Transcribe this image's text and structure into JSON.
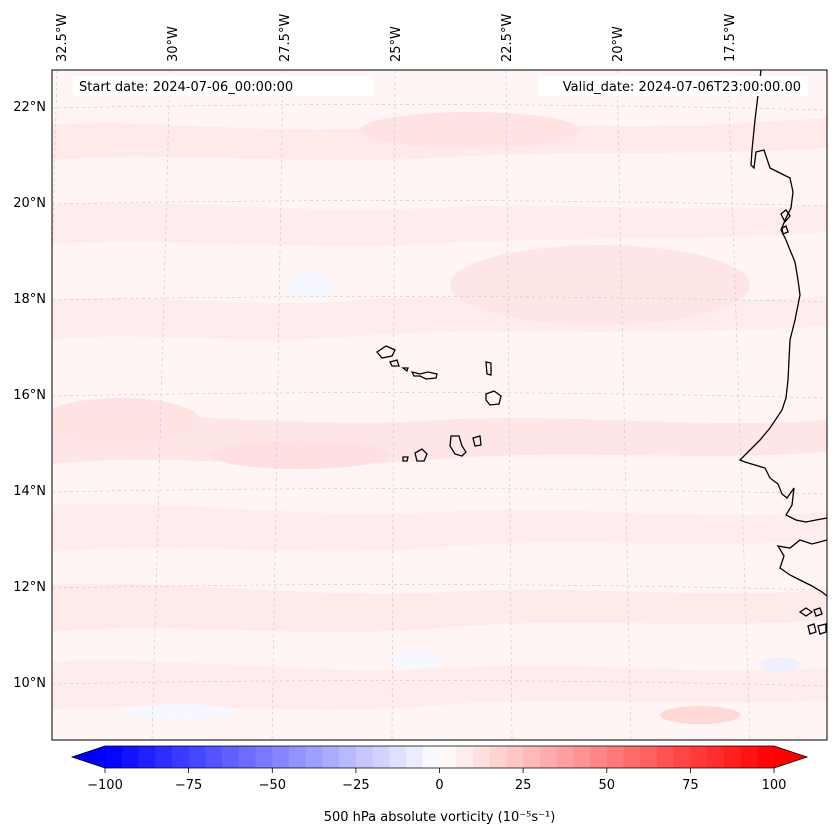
{
  "header": {
    "start_date": "Start date: 2024-07-06_00:00:00",
    "valid_date": "Valid_date: 2024-07-06T23:00:00.00"
  },
  "map": {
    "longitude_labels": [
      "32.5°W",
      "30°W",
      "27.5°W",
      "25°W",
      "22.5°W",
      "20°W",
      "17.5°W"
    ],
    "latitude_labels": [
      "22°N",
      "20°N",
      "18°N",
      "16°N",
      "14°N",
      "12°N",
      "10°N"
    ],
    "gridlines": true,
    "coastline_color": "#000000",
    "gridline_color": "#c8c8c8"
  },
  "colorbar": {
    "label": "500 hPa absolute vorticity (10⁻⁵s⁻¹)",
    "tick_labels": [
      "−100",
      "−75",
      "−50",
      "−25",
      "0",
      "25",
      "50",
      "75",
      "100"
    ],
    "min": -100,
    "max": 100,
    "extend": "both",
    "low_color": "#0000ff",
    "mid_color": "#ffffff",
    "high_color": "#ff0000"
  }
}
